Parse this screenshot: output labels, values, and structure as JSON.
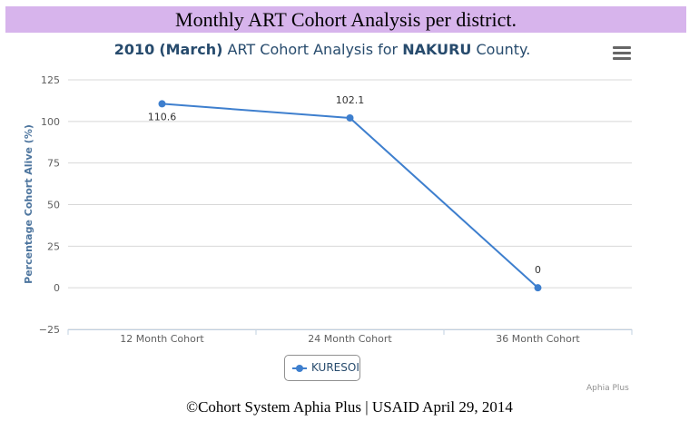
{
  "banner": {
    "title": "Monthly ART Cohort Analysis per district."
  },
  "chart_data": {
    "type": "line",
    "title_parts": {
      "year": "2010",
      "month": "(March)",
      "middle": "ART Cohort Analysis for",
      "county": "NAKURU",
      "suffix": "County."
    },
    "ylabel": "Percentage Cohort Alive (%)",
    "xlabel": "",
    "categories": [
      "12 Month Cohort",
      "24 Month Cohort",
      "36 Month Cohort"
    ],
    "yticks": [
      "125",
      "100",
      "75",
      "50",
      "25",
      "0",
      "−25"
    ],
    "ylim": [
      -25,
      125
    ],
    "grid": true,
    "legend_position": "bottom-center",
    "series": [
      {
        "name": "KURESOI",
        "values": [
          110.6,
          102.1,
          0
        ],
        "data_labels": [
          "110.6",
          "102.1",
          "0"
        ],
        "color": "#3e7fce"
      }
    ]
  },
  "credit": "Aphia Plus",
  "footer": "©Cohort System Aphia Plus | USAID April 29, 2014",
  "icons": {
    "menu": "hamburger-menu-icon"
  }
}
